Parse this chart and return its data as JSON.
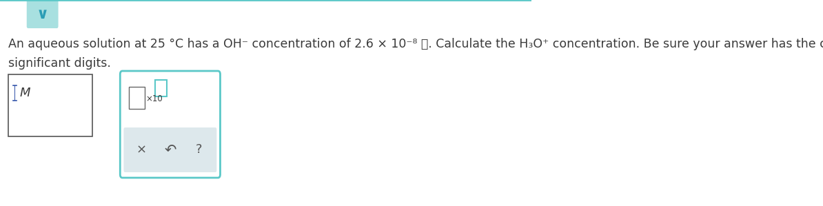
{
  "background_color": "#ffffff",
  "top_bar_color": "#5bc8c8",
  "top_tab_color": "#a8e0e0",
  "chevron_color": "#2a9db5",
  "main_text_color": "#3a3a3a",
  "main_text_fontsize": 12.5,
  "line1": "An aqueous solution at 25 °C has a OH⁻ concentration of 2.6 × 10⁻⁸ M. Calculate the H₃O⁺ concentration. Be sure your answer has the correct number of",
  "line2": "significant digits.",
  "box1_color": "#555555",
  "box2_border_color": "#5bc8c8",
  "box2_bg": "#ffffff",
  "gray_panel_color": "#dde8ec",
  "small_box_border": "#666666",
  "teal_box_border": "#5bc8c8",
  "symbol_color": "#555555",
  "symbol_fontsize": 13,
  "cursor_color": "#3355aa"
}
